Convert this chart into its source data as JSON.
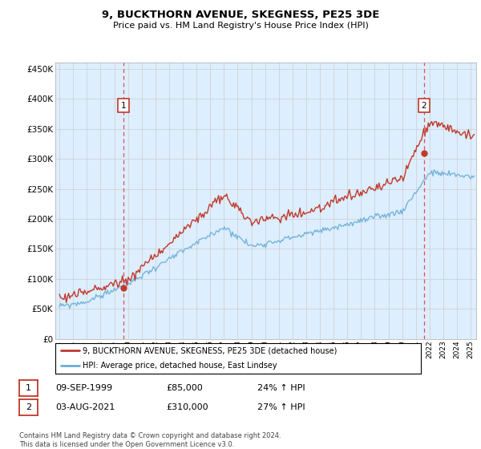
{
  "title": "9, BUCKTHORN AVENUE, SKEGNESS, PE25 3DE",
  "subtitle": "Price paid vs. HM Land Registry's House Price Index (HPI)",
  "ytick_values": [
    0,
    50000,
    100000,
    150000,
    200000,
    250000,
    300000,
    350000,
    400000,
    450000
  ],
  "ylim": [
    0,
    460000
  ],
  "xlim_start": 1994.7,
  "xlim_end": 2025.4,
  "marker1_x": 1999.69,
  "marker1_y": 85000,
  "marker2_x": 2021.58,
  "marker2_y": 310000,
  "vline1_x": 1999.69,
  "vline2_x": 2021.58,
  "legend_line1": "9, BUCKTHORN AVENUE, SKEGNESS, PE25 3DE (detached house)",
  "legend_line2": "HPI: Average price, detached house, East Lindsey",
  "table_row1_num": "1",
  "table_row1_date": "09-SEP-1999",
  "table_row1_price": "£85,000",
  "table_row1_hpi": "24% ↑ HPI",
  "table_row2_num": "2",
  "table_row2_date": "03-AUG-2021",
  "table_row2_price": "£310,000",
  "table_row2_hpi": "27% ↑ HPI",
  "footer": "Contains HM Land Registry data © Crown copyright and database right 2024.\nThis data is licensed under the Open Government Licence v3.0.",
  "red_color": "#c0392b",
  "blue_color": "#6baed6",
  "vline_color": "#e05050",
  "grid_color": "#cccccc",
  "chart_bg": "#ddeeff",
  "background_color": "#ffffff"
}
